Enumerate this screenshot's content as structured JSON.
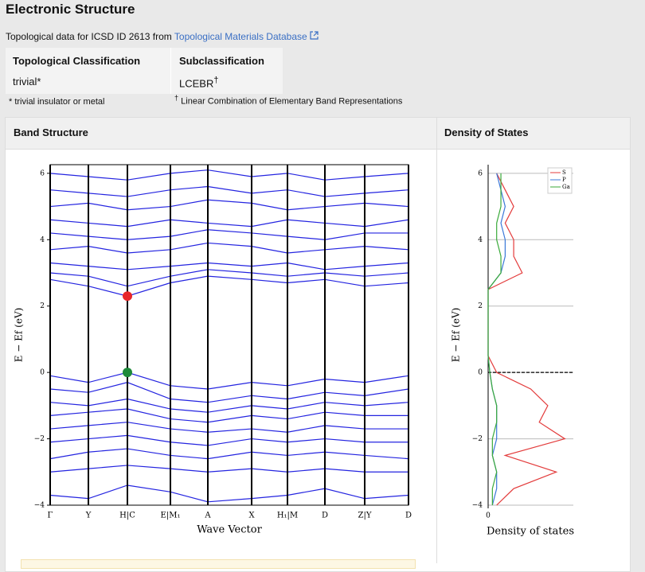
{
  "header": {
    "title": "Electronic Structure",
    "source_prefix": "Topological data for ICSD ID 2613 from",
    "source_link": "Topological Materials Database"
  },
  "classification": {
    "headers": [
      "Topological Classification",
      "Subclassification"
    ],
    "values": [
      "trivial*",
      "LCEBR"
    ],
    "dagger": "†"
  },
  "footnotes": [
    "* trivial insulator or metal",
    "Linear Combination of Elementary Band Representations"
  ],
  "panels": [
    "Band Structure",
    "Density of States"
  ],
  "chart_data": [
    {
      "type": "line",
      "xlabel": "Wave Vector",
      "ylabel": "E − Ef (eV)",
      "color": "#2424e0",
      "xlim": [
        0,
        4.5
      ],
      "ylim": [
        -4,
        6.26
      ],
      "xticks": [
        {
          "value": 0,
          "label": "Γ"
        },
        {
          "value": 0.48,
          "label": "Y"
        },
        {
          "value": 0.97,
          "label": "H|C"
        },
        {
          "value": 1.51,
          "label": "E|M₁"
        },
        {
          "value": 1.98,
          "label": "A"
        },
        {
          "value": 2.53,
          "label": "X"
        },
        {
          "value": 2.98,
          "label": "H₁|M"
        },
        {
          "value": 3.45,
          "label": "D"
        },
        {
          "value": 3.95,
          "label": "Z|Y"
        },
        {
          "value": 4.5,
          "label": "D"
        }
      ],
      "yticks": [
        {
          "value": -4,
          "label": "−4"
        },
        {
          "value": -2,
          "label": "−2"
        },
        0,
        2,
        4,
        6
      ],
      "x": [
        0,
        0.48,
        0.97,
        1.51,
        1.98,
        2.53,
        2.98,
        3.45,
        3.95,
        4.5
      ],
      "bands": [
        {
          "values": [
            -0.1,
            -0.3,
            0.0,
            -0.4,
            -0.5,
            -0.3,
            -0.4,
            -0.2,
            -0.3,
            -0.1
          ]
        },
        {
          "values": [
            -0.5,
            -0.6,
            -0.3,
            -0.8,
            -0.9,
            -0.7,
            -0.8,
            -0.6,
            -0.7,
            -0.5
          ]
        },
        {
          "values": [
            -0.9,
            -1.0,
            -0.8,
            -1.1,
            -1.2,
            -1.0,
            -1.1,
            -0.9,
            -1.0,
            -0.9
          ]
        },
        {
          "values": [
            -1.3,
            -1.2,
            -1.1,
            -1.4,
            -1.5,
            -1.3,
            -1.4,
            -1.2,
            -1.3,
            -1.3
          ]
        },
        {
          "values": [
            -1.7,
            -1.6,
            -1.5,
            -1.7,
            -1.8,
            -1.7,
            -1.8,
            -1.6,
            -1.7,
            -1.7
          ]
        },
        {
          "values": [
            -2.1,
            -2.0,
            -1.9,
            -2.1,
            -2.2,
            -2.0,
            -2.1,
            -2.0,
            -2.1,
            -2.1
          ]
        },
        {
          "values": [
            -2.6,
            -2.4,
            -2.3,
            -2.5,
            -2.6,
            -2.4,
            -2.5,
            -2.4,
            -2.5,
            -2.6
          ]
        },
        {
          "values": [
            -3.0,
            -2.9,
            -2.8,
            -2.9,
            -3.0,
            -2.9,
            -3.0,
            -2.9,
            -3.0,
            -3.0
          ]
        },
        {
          "values": [
            -3.7,
            -3.8,
            -3.4,
            -3.6,
            -3.9,
            -3.8,
            -3.7,
            -3.5,
            -3.8,
            -3.7
          ]
        },
        {
          "values": [
            2.8,
            2.6,
            2.3,
            2.7,
            2.9,
            2.8,
            2.7,
            2.8,
            2.6,
            2.7
          ]
        },
        {
          "values": [
            3.0,
            2.9,
            2.6,
            2.9,
            3.1,
            3.0,
            2.9,
            3.0,
            2.9,
            3.0
          ]
        },
        {
          "values": [
            3.3,
            3.2,
            3.1,
            3.2,
            3.3,
            3.2,
            3.3,
            3.1,
            3.2,
            3.3
          ]
        },
        {
          "values": [
            3.7,
            3.8,
            3.6,
            3.7,
            3.9,
            3.8,
            3.6,
            3.7,
            3.8,
            3.7
          ]
        },
        {
          "values": [
            4.2,
            4.1,
            4.0,
            4.1,
            4.3,
            4.2,
            4.1,
            4.0,
            4.2,
            4.2
          ]
        },
        {
          "values": [
            4.6,
            4.5,
            4.4,
            4.6,
            4.5,
            4.4,
            4.6,
            4.5,
            4.4,
            4.6
          ]
        },
        {
          "values": [
            5.0,
            5.1,
            4.9,
            5.0,
            5.2,
            5.1,
            4.9,
            5.0,
            5.1,
            5.0
          ]
        },
        {
          "values": [
            5.5,
            5.4,
            5.3,
            5.5,
            5.6,
            5.4,
            5.5,
            5.3,
            5.4,
            5.5
          ]
        },
        {
          "values": [
            6.0,
            5.9,
            5.8,
            6.0,
            6.1,
            5.9,
            6.0,
            5.8,
            5.9,
            6.0
          ]
        }
      ],
      "points": [
        {
          "x": 0.97,
          "y": 2.3,
          "color": "#e8262a"
        },
        {
          "x": 0.97,
          "y": 0.0,
          "color": "#1e8a3a"
        }
      ]
    },
    {
      "type": "dos",
      "xlabel": "Density of states",
      "ylabel": "E − Ef (eV)",
      "xlim": [
        0,
        10
      ],
      "ylim": [
        -4,
        6.26
      ],
      "xticks": [
        0
      ],
      "yticks": [
        {
          "value": -4,
          "label": "−4"
        },
        {
          "value": -2,
          "label": "−2"
        },
        0,
        2,
        4,
        6
      ],
      "grid": true,
      "fermi_level": 0,
      "legend": "upper right",
      "energies": [
        -4,
        -3.5,
        -3,
        -2.5,
        -2,
        -1.5,
        -1,
        -0.5,
        0,
        0.5,
        1,
        1.5,
        2,
        2.5,
        3,
        3.5,
        4,
        4.5,
        5,
        5.5,
        6
      ],
      "series": [
        {
          "name": "S",
          "color": "#e33b3b",
          "values": [
            1,
            3,
            8,
            2,
            9,
            6,
            7,
            5,
            1,
            0,
            0,
            0,
            0,
            0,
            4,
            3,
            3,
            2,
            3,
            2,
            1
          ]
        },
        {
          "name": "P",
          "color": "#3b78d8",
          "values": [
            0.5,
            1,
            1,
            0.5,
            1,
            1,
            1,
            0.5,
            0.2,
            0,
            0,
            0,
            0,
            0,
            1.5,
            2,
            2,
            1.5,
            2,
            1.5,
            1
          ]
        },
        {
          "name": "Ga",
          "color": "#3aaa3a",
          "values": [
            0.5,
            0.5,
            1,
            0.5,
            0.5,
            1,
            1,
            0.5,
            0.2,
            0,
            0,
            0,
            0,
            0,
            1.5,
            1.5,
            1,
            1,
            1.5,
            1.5,
            1.5
          ]
        }
      ]
    }
  ]
}
